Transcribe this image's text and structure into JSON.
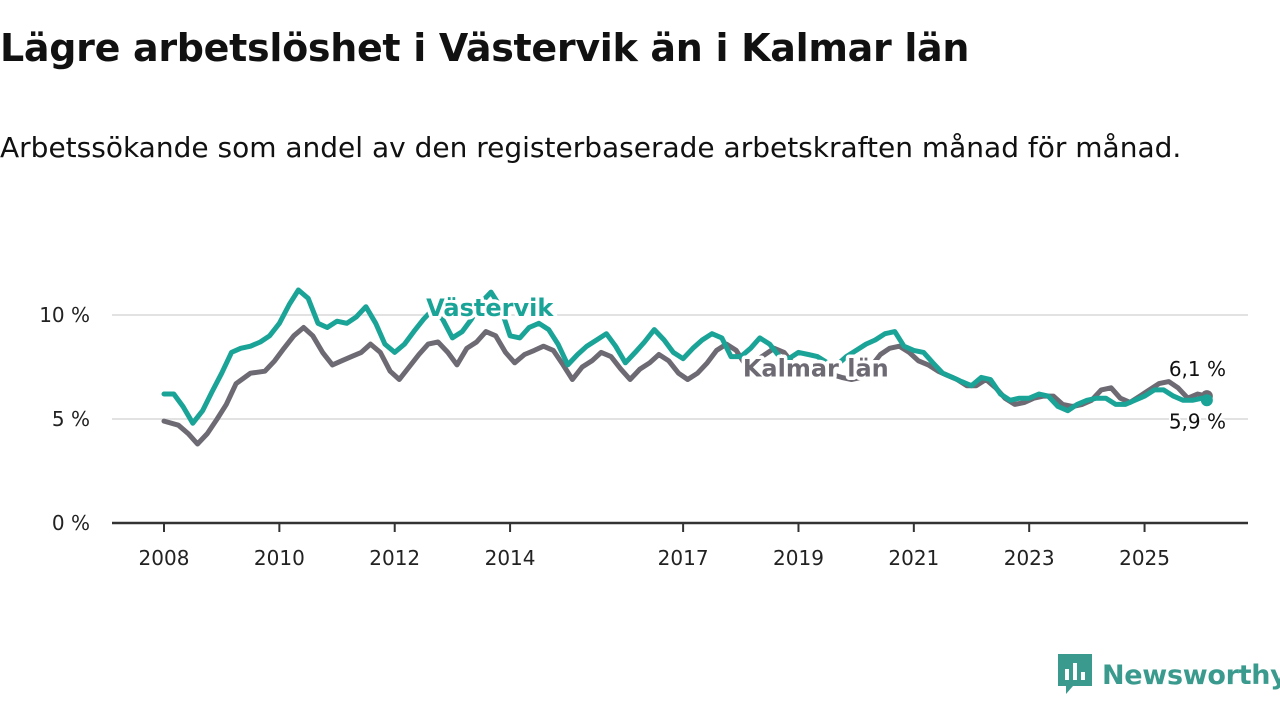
{
  "header": {
    "title": "Lägre arbetslöshet i Västervik än i Kalmar län",
    "subtitle": "Arbetssökande som andel av den registerbaserade arbetskraften månad för månad."
  },
  "brand": {
    "name": "Newsworthy",
    "color": "#3a9a8e",
    "icon": "newsworthy-logo-icon"
  },
  "chart_data": {
    "type": "line",
    "title": "Lägre arbetslöshet i Västervik än i Kalmar län",
    "subtitle": "Arbetssökande som andel av den registerbaserade arbetskraften månad för månad.",
    "xlabel": "",
    "ylabel": "",
    "xlim": [
      2008.0,
      2026.25
    ],
    "ylim": [
      0,
      12
    ],
    "x_ticks": [
      2008,
      2010,
      2012,
      2014,
      2017,
      2019,
      2021,
      2023,
      2025
    ],
    "y_ticks": [
      {
        "value": 0,
        "label": "0 %"
      },
      {
        "value": 5,
        "label": "5 %"
      },
      {
        "value": 10,
        "label": "10 %"
      }
    ],
    "grid": true,
    "series": [
      {
        "name": "Kalmar län",
        "color": "#6e6a73",
        "last_label": "6,1 %",
        "points": [
          [
            2008.0,
            4.9
          ],
          [
            2008.25,
            4.7
          ],
          [
            2008.42,
            4.3
          ],
          [
            2008.58,
            3.8
          ],
          [
            2008.75,
            4.3
          ],
          [
            2008.92,
            5.0
          ],
          [
            2009.08,
            5.7
          ],
          [
            2009.25,
            6.7
          ],
          [
            2009.5,
            7.2
          ],
          [
            2009.75,
            7.3
          ],
          [
            2009.92,
            7.8
          ],
          [
            2010.08,
            8.4
          ],
          [
            2010.25,
            9.0
          ],
          [
            2010.42,
            9.4
          ],
          [
            2010.58,
            9.0
          ],
          [
            2010.75,
            8.2
          ],
          [
            2010.92,
            7.6
          ],
          [
            2011.08,
            7.8
          ],
          [
            2011.25,
            8.0
          ],
          [
            2011.42,
            8.2
          ],
          [
            2011.58,
            8.6
          ],
          [
            2011.75,
            8.2
          ],
          [
            2011.92,
            7.3
          ],
          [
            2012.08,
            6.9
          ],
          [
            2012.25,
            7.5
          ],
          [
            2012.42,
            8.1
          ],
          [
            2012.58,
            8.6
          ],
          [
            2012.75,
            8.7
          ],
          [
            2012.92,
            8.2
          ],
          [
            2013.08,
            7.6
          ],
          [
            2013.25,
            8.4
          ],
          [
            2013.42,
            8.7
          ],
          [
            2013.58,
            9.2
          ],
          [
            2013.75,
            9.0
          ],
          [
            2013.92,
            8.2
          ],
          [
            2014.08,
            7.7
          ],
          [
            2014.25,
            8.1
          ],
          [
            2014.42,
            8.3
          ],
          [
            2014.58,
            8.5
          ],
          [
            2014.75,
            8.3
          ],
          [
            2014.92,
            7.6
          ],
          [
            2015.08,
            6.9
          ],
          [
            2015.25,
            7.5
          ],
          [
            2015.42,
            7.8
          ],
          [
            2015.58,
            8.2
          ],
          [
            2015.75,
            8.0
          ],
          [
            2015.92,
            7.4
          ],
          [
            2016.08,
            6.9
          ],
          [
            2016.25,
            7.4
          ],
          [
            2016.42,
            7.7
          ],
          [
            2016.58,
            8.1
          ],
          [
            2016.75,
            7.8
          ],
          [
            2016.92,
            7.2
          ],
          [
            2017.08,
            6.9
          ],
          [
            2017.25,
            7.2
          ],
          [
            2017.42,
            7.7
          ],
          [
            2017.58,
            8.3
          ],
          [
            2017.75,
            8.6
          ],
          [
            2017.92,
            8.3
          ],
          [
            2018.08,
            7.6
          ],
          [
            2018.25,
            7.8
          ],
          [
            2018.42,
            8.1
          ],
          [
            2018.58,
            8.4
          ],
          [
            2018.75,
            8.2
          ],
          [
            2018.92,
            7.6
          ],
          [
            2019.08,
            7.3
          ],
          [
            2019.25,
            7.1
          ],
          [
            2019.5,
            7.2
          ],
          [
            2019.75,
            7.0
          ],
          [
            2019.92,
            6.9
          ],
          [
            2020.08,
            7.0
          ],
          [
            2020.25,
            7.5
          ],
          [
            2020.42,
            8.1
          ],
          [
            2020.58,
            8.4
          ],
          [
            2020.75,
            8.5
          ],
          [
            2020.92,
            8.2
          ],
          [
            2021.08,
            7.8
          ],
          [
            2021.25,
            7.6
          ],
          [
            2021.42,
            7.3
          ],
          [
            2021.58,
            7.1
          ],
          [
            2021.75,
            6.9
          ],
          [
            2021.92,
            6.6
          ],
          [
            2022.08,
            6.6
          ],
          [
            2022.25,
            6.9
          ],
          [
            2022.42,
            6.5
          ],
          [
            2022.58,
            6.0
          ],
          [
            2022.75,
            5.7
          ],
          [
            2022.92,
            5.8
          ],
          [
            2023.08,
            6.0
          ],
          [
            2023.25,
            6.1
          ],
          [
            2023.42,
            6.1
          ],
          [
            2023.58,
            5.7
          ],
          [
            2023.75,
            5.6
          ],
          [
            2023.92,
            5.7
          ],
          [
            2024.08,
            5.9
          ],
          [
            2024.25,
            6.4
          ],
          [
            2024.42,
            6.5
          ],
          [
            2024.58,
            6.0
          ],
          [
            2024.75,
            5.8
          ],
          [
            2024.92,
            6.1
          ],
          [
            2025.08,
            6.4
          ],
          [
            2025.25,
            6.7
          ],
          [
            2025.42,
            6.8
          ],
          [
            2025.58,
            6.5
          ],
          [
            2025.75,
            6.0
          ],
          [
            2025.92,
            6.2
          ],
          [
            2026.08,
            6.1
          ]
        ]
      },
      {
        "name": "Västervik",
        "color": "#1aa397",
        "last_label": "5,9 %",
        "points": [
          [
            2008.0,
            6.2
          ],
          [
            2008.17,
            6.2
          ],
          [
            2008.33,
            5.6
          ],
          [
            2008.5,
            4.8
          ],
          [
            2008.67,
            5.4
          ],
          [
            2008.83,
            6.3
          ],
          [
            2009.0,
            7.2
          ],
          [
            2009.17,
            8.2
          ],
          [
            2009.33,
            8.4
          ],
          [
            2009.5,
            8.5
          ],
          [
            2009.67,
            8.7
          ],
          [
            2009.83,
            9.0
          ],
          [
            2010.0,
            9.6
          ],
          [
            2010.17,
            10.5
          ],
          [
            2010.33,
            11.2
          ],
          [
            2010.5,
            10.8
          ],
          [
            2010.67,
            9.6
          ],
          [
            2010.83,
            9.4
          ],
          [
            2011.0,
            9.7
          ],
          [
            2011.17,
            9.6
          ],
          [
            2011.33,
            9.9
          ],
          [
            2011.5,
            10.4
          ],
          [
            2011.67,
            9.6
          ],
          [
            2011.83,
            8.6
          ],
          [
            2012.0,
            8.2
          ],
          [
            2012.17,
            8.6
          ],
          [
            2012.33,
            9.2
          ],
          [
            2012.5,
            9.8
          ],
          [
            2012.67,
            10.3
          ],
          [
            2012.83,
            9.8
          ],
          [
            2013.0,
            8.9
          ],
          [
            2013.17,
            9.2
          ],
          [
            2013.33,
            9.8
          ],
          [
            2013.5,
            10.6
          ],
          [
            2013.67,
            11.1
          ],
          [
            2013.83,
            10.4
          ],
          [
            2014.0,
            9.0
          ],
          [
            2014.17,
            8.9
          ],
          [
            2014.33,
            9.4
          ],
          [
            2014.5,
            9.6
          ],
          [
            2014.67,
            9.3
          ],
          [
            2014.83,
            8.6
          ],
          [
            2015.0,
            7.6
          ],
          [
            2015.17,
            8.1
          ],
          [
            2015.33,
            8.5
          ],
          [
            2015.5,
            8.8
          ],
          [
            2015.67,
            9.1
          ],
          [
            2015.83,
            8.5
          ],
          [
            2016.0,
            7.7
          ],
          [
            2016.17,
            8.2
          ],
          [
            2016.33,
            8.7
          ],
          [
            2016.5,
            9.3
          ],
          [
            2016.67,
            8.8
          ],
          [
            2016.83,
            8.2
          ],
          [
            2017.0,
            7.9
          ],
          [
            2017.17,
            8.4
          ],
          [
            2017.33,
            8.8
          ],
          [
            2017.5,
            9.1
          ],
          [
            2017.67,
            8.9
          ],
          [
            2017.83,
            8.0
          ],
          [
            2018.0,
            8.0
          ],
          [
            2018.17,
            8.4
          ],
          [
            2018.33,
            8.9
          ],
          [
            2018.5,
            8.6
          ],
          [
            2018.67,
            8.0
          ],
          [
            2018.83,
            7.9
          ],
          [
            2019.0,
            8.2
          ],
          [
            2019.17,
            8.1
          ],
          [
            2019.33,
            8.0
          ],
          [
            2019.5,
            7.7
          ],
          [
            2019.67,
            7.6
          ],
          [
            2019.83,
            8.0
          ],
          [
            2020.0,
            8.3
          ],
          [
            2020.17,
            8.6
          ],
          [
            2020.33,
            8.8
          ],
          [
            2020.5,
            9.1
          ],
          [
            2020.67,
            9.2
          ],
          [
            2020.83,
            8.5
          ],
          [
            2021.0,
            8.3
          ],
          [
            2021.17,
            8.2
          ],
          [
            2021.33,
            7.7
          ],
          [
            2021.5,
            7.2
          ],
          [
            2021.67,
            7.0
          ],
          [
            2021.83,
            6.8
          ],
          [
            2022.0,
            6.6
          ],
          [
            2022.17,
            7.0
          ],
          [
            2022.33,
            6.9
          ],
          [
            2022.5,
            6.2
          ],
          [
            2022.67,
            5.9
          ],
          [
            2022.83,
            6.0
          ],
          [
            2023.0,
            6.0
          ],
          [
            2023.17,
            6.2
          ],
          [
            2023.33,
            6.1
          ],
          [
            2023.5,
            5.6
          ],
          [
            2023.67,
            5.4
          ],
          [
            2023.83,
            5.7
          ],
          [
            2024.0,
            5.9
          ],
          [
            2024.17,
            6.0
          ],
          [
            2024.33,
            6.0
          ],
          [
            2024.5,
            5.7
          ],
          [
            2024.67,
            5.7
          ],
          [
            2024.83,
            5.9
          ],
          [
            2025.0,
            6.1
          ],
          [
            2025.17,
            6.4
          ],
          [
            2025.33,
            6.4
          ],
          [
            2025.5,
            6.1
          ],
          [
            2025.67,
            5.9
          ],
          [
            2025.83,
            5.9
          ],
          [
            2026.0,
            6.0
          ],
          [
            2026.08,
            5.9
          ]
        ]
      }
    ]
  }
}
